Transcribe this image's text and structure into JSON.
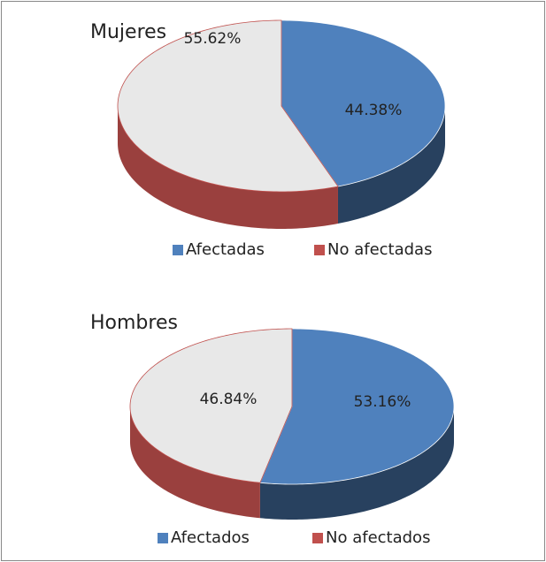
{
  "chart_data": [
    {
      "type": "pie",
      "title": "Mujeres",
      "categories": [
        "Afectadas",
        "No afectadas"
      ],
      "values": [
        44.38,
        55.62
      ],
      "value_labels": [
        "44.38%",
        "55.62%"
      ],
      "colors": [
        "#4f81bd",
        "#c0504d"
      ],
      "top_colors": [
        "#4f81bd",
        "#e8e8e8"
      ]
    },
    {
      "type": "pie",
      "title": "Hombres",
      "categories": [
        "Afectados",
        "No afectados"
      ],
      "values": [
        53.16,
        46.84
      ],
      "value_labels": [
        "53.16%",
        "46.84%"
      ],
      "colors": [
        "#4f81bd",
        "#c0504d"
      ],
      "top_colors": [
        "#4f81bd",
        "#e8e8e8"
      ]
    }
  ]
}
